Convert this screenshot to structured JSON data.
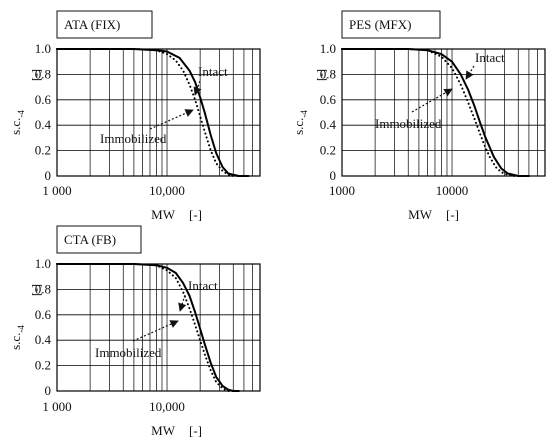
{
  "chart_data": [
    {
      "type": "line",
      "title": "ATA (FIX)",
      "xlabel": "MW",
      "xunit": "[-]",
      "ylabel": "s.c.",
      "ylabel_sub": "-4",
      "yunit": "[-]",
      "xscale": "log",
      "xlim": [
        1000,
        70000
      ],
      "ylim": [
        0,
        1.0
      ],
      "grid": true,
      "xtick_labels": [
        "1 000",
        "10,000"
      ],
      "ytick_labels": [
        "1.0",
        "0.8",
        "0.6",
        "0.4",
        "0.2",
        "0"
      ],
      "annotations": [
        {
          "text": "Intact",
          "points_to": "Intact"
        },
        {
          "text": "Immobilized",
          "points_to": "Immobilized"
        }
      ],
      "series": [
        {
          "name": "Intact",
          "style": "solid",
          "x": [
            1000,
            5000,
            8000,
            10000,
            13000,
            16000,
            18000,
            20000,
            22000,
            25000,
            28000,
            32000,
            36000,
            40000,
            45000,
            55000
          ],
          "y": [
            1.0,
            1.0,
            0.99,
            0.98,
            0.93,
            0.83,
            0.74,
            0.62,
            0.5,
            0.32,
            0.18,
            0.07,
            0.02,
            0.01,
            0.0,
            0.0
          ]
        },
        {
          "name": "Immobilized",
          "style": "dotted",
          "x": [
            1000,
            5000,
            8000,
            10000,
            12000,
            14000,
            16000,
            18000,
            20000,
            22000,
            25000,
            28000,
            32000,
            36000,
            40000,
            45000
          ],
          "y": [
            1.0,
            1.0,
            0.99,
            0.96,
            0.91,
            0.83,
            0.72,
            0.6,
            0.47,
            0.35,
            0.2,
            0.1,
            0.04,
            0.01,
            0.0,
            0.0
          ]
        }
      ]
    },
    {
      "type": "line",
      "title": "PES (MFX)",
      "xlabel": "MW",
      "xunit": "[-]",
      "ylabel": "s.c.",
      "ylabel_sub": "-4",
      "yunit": "[-]",
      "xscale": "log",
      "xlim": [
        1000,
        70000
      ],
      "ylim": [
        0,
        1.0
      ],
      "grid": true,
      "xtick_labels": [
        "1000",
        "10000"
      ],
      "ytick_labels": [
        "1.0",
        "0.8",
        "0.6",
        "0.4",
        "0.2",
        "0"
      ],
      "annotations": [
        {
          "text": "Intact",
          "points_to": "Intact"
        },
        {
          "text": "Immobilized",
          "points_to": "Immobilized"
        }
      ],
      "series": [
        {
          "name": "Intact",
          "style": "solid",
          "x": [
            1000,
            4000,
            6000,
            8000,
            10000,
            12000,
            14000,
            16000,
            18000,
            20000,
            24000,
            28000,
            32000,
            36000,
            40000,
            50000
          ],
          "y": [
            1.0,
            1.0,
            0.99,
            0.96,
            0.9,
            0.8,
            0.68,
            0.55,
            0.42,
            0.31,
            0.15,
            0.06,
            0.02,
            0.01,
            0.0,
            0.0
          ]
        },
        {
          "name": "Immobilized",
          "style": "dotted",
          "x": [
            1000,
            4000,
            6000,
            8000,
            10000,
            12000,
            14000,
            16000,
            18000,
            20000,
            22000,
            25000,
            28000,
            32000,
            36000,
            40000
          ],
          "y": [
            1.0,
            1.0,
            0.99,
            0.94,
            0.85,
            0.72,
            0.58,
            0.45,
            0.33,
            0.23,
            0.15,
            0.07,
            0.03,
            0.01,
            0.0,
            0.0
          ]
        }
      ]
    },
    {
      "type": "line",
      "title": "CTA (FB)",
      "xlabel": "MW",
      "xunit": "[-]",
      "ylabel": "s.c.",
      "ylabel_sub": "-4",
      "yunit": "[-]",
      "xscale": "log",
      "xlim": [
        1000,
        70000
      ],
      "ylim": [
        0,
        1.0
      ],
      "grid": true,
      "xtick_labels": [
        "1 000",
        "10,000"
      ],
      "ytick_labels": [
        "1.0",
        "0.8",
        "0.6",
        "0.4",
        "0.2",
        "0"
      ],
      "annotations": [
        {
          "text": "Intact",
          "points_to": "Intact"
        },
        {
          "text": "Immobilized",
          "points_to": "Immobilized"
        }
      ],
      "series": [
        {
          "name": "Intact",
          "style": "solid",
          "x": [
            1000,
            5000,
            8000,
            10000,
            12000,
            14000,
            16000,
            18000,
            20000,
            22000,
            25000,
            28000,
            32000,
            36000,
            40000,
            45000
          ],
          "y": [
            1.0,
            1.0,
            0.99,
            0.97,
            0.93,
            0.85,
            0.75,
            0.62,
            0.49,
            0.37,
            0.22,
            0.11,
            0.04,
            0.01,
            0.0,
            0.0
          ]
        },
        {
          "name": "Immobilized",
          "style": "dotted",
          "x": [
            1000,
            5000,
            8000,
            10000,
            12000,
            14000,
            16000,
            18000,
            20000,
            22000,
            25000,
            28000,
            32000,
            36000,
            40000
          ],
          "y": [
            1.0,
            1.0,
            0.99,
            0.95,
            0.89,
            0.78,
            0.65,
            0.52,
            0.4,
            0.29,
            0.16,
            0.07,
            0.02,
            0.0,
            0.0
          ]
        }
      ]
    }
  ]
}
